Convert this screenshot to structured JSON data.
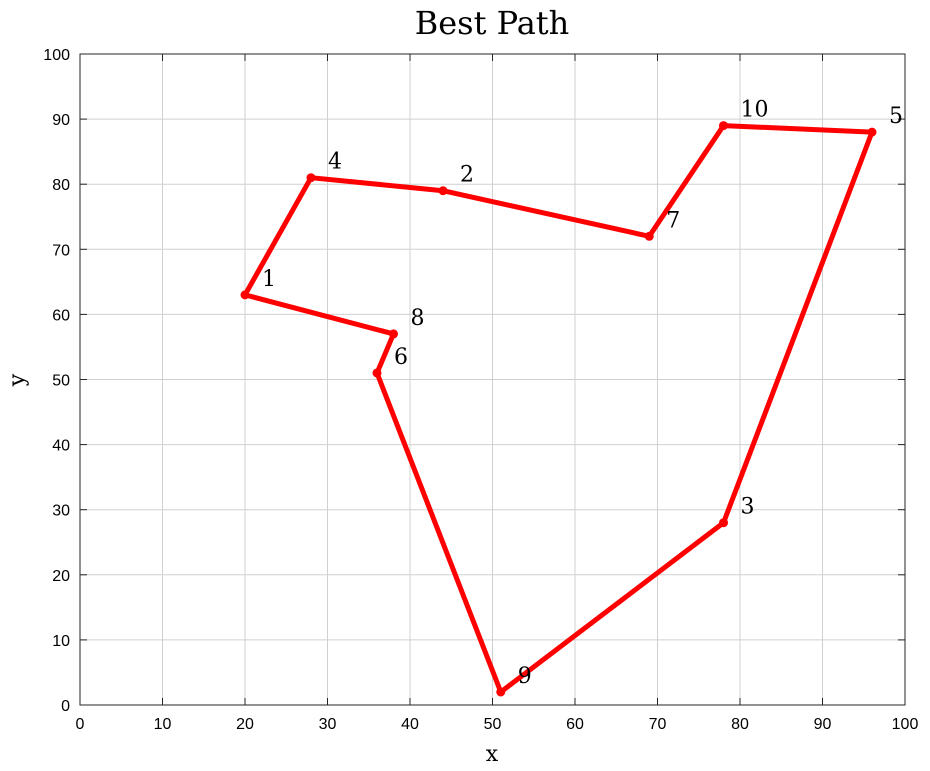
{
  "chart_data": {
    "type": "line",
    "title": "Best Path",
    "xlabel": "x",
    "ylabel": "y",
    "xlim": [
      0,
      100
    ],
    "ylim": [
      0,
      100
    ],
    "xticks": [
      "0",
      "10",
      "20",
      "30",
      "40",
      "50",
      "60",
      "70",
      "80",
      "90",
      "100"
    ],
    "yticks": [
      "0",
      "10",
      "20",
      "30",
      "40",
      "50",
      "60",
      "70",
      "80",
      "90",
      "100"
    ],
    "grid": true,
    "line_color": "#ff0000",
    "points": [
      {
        "label": "1",
        "x": 20,
        "y": 63
      },
      {
        "label": "2",
        "x": 44,
        "y": 79
      },
      {
        "label": "3",
        "x": 78,
        "y": 28
      },
      {
        "label": "4",
        "x": 28,
        "y": 81
      },
      {
        "label": "5",
        "x": 96,
        "y": 88
      },
      {
        "label": "6",
        "x": 36,
        "y": 51
      },
      {
        "label": "7",
        "x": 69,
        "y": 72
      },
      {
        "label": "8",
        "x": 38,
        "y": 57
      },
      {
        "label": "9",
        "x": 51,
        "y": 2
      },
      {
        "label": "10",
        "x": 78,
        "y": 89
      }
    ],
    "path_order": [
      "1",
      "4",
      "2",
      "7",
      "10",
      "5",
      "3",
      "9",
      "6",
      "8",
      "1"
    ]
  }
}
